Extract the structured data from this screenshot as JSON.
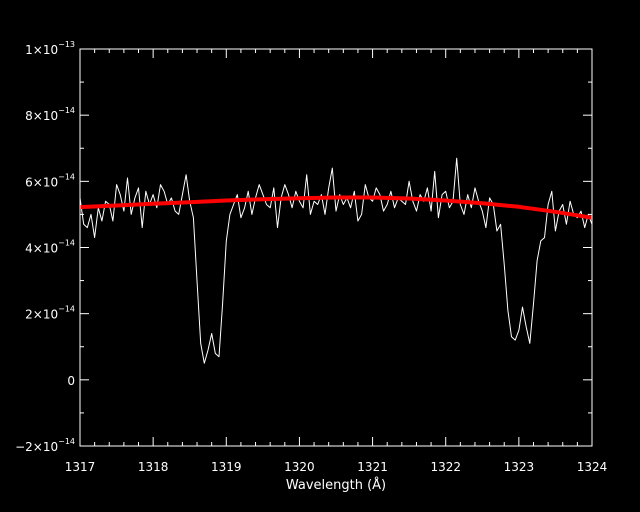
{
  "chart_data": {
    "type": "line",
    "title": "",
    "xlabel": "Wavelength (Å)",
    "ylabel": "",
    "xlim": [
      1317,
      1324
    ],
    "ylim": [
      -2e-14,
      1e-13
    ],
    "grid": false,
    "x_ticks": [
      {
        "value": 1317,
        "label": "1317"
      },
      {
        "value": 1318,
        "label": "1318"
      },
      {
        "value": 1319,
        "label": "1319"
      },
      {
        "value": 1320,
        "label": "1320"
      },
      {
        "value": 1321,
        "label": "1321"
      },
      {
        "value": 1322,
        "label": "1322"
      },
      {
        "value": 1323,
        "label": "1323"
      },
      {
        "value": 1324,
        "label": "1324"
      }
    ],
    "y_ticks": [
      {
        "value": -2e-14,
        "mantissa": "−2×10",
        "exponent": "−14"
      },
      {
        "value": 0,
        "mantissa": "0",
        "exponent": ""
      },
      {
        "value": 2e-14,
        "mantissa": "2×10",
        "exponent": "−14"
      },
      {
        "value": 4e-14,
        "mantissa": "4×10",
        "exponent": "−14"
      },
      {
        "value": 6e-14,
        "mantissa": "6×10",
        "exponent": "−14"
      },
      {
        "value": 8e-14,
        "mantissa": "8×10",
        "exponent": "−14"
      },
      {
        "value": 1e-13,
        "mantissa": "1×10",
        "exponent": "−13"
      }
    ],
    "series": [
      {
        "color": "#ffffff",
        "units": "1e-14",
        "x": [
          1317.0,
          1317.05,
          1317.1,
          1317.15,
          1317.2,
          1317.25,
          1317.3,
          1317.35,
          1317.4,
          1317.45,
          1317.5,
          1317.55,
          1317.6,
          1317.65,
          1317.7,
          1317.75,
          1317.8,
          1317.85,
          1317.9,
          1317.95,
          1318.0,
          1318.05,
          1318.1,
          1318.15,
          1318.2,
          1318.25,
          1318.3,
          1318.35,
          1318.4,
          1318.45,
          1318.5,
          1318.55,
          1318.6,
          1318.65,
          1318.7,
          1318.75,
          1318.8,
          1318.85,
          1318.9,
          1318.95,
          1319.0,
          1319.05,
          1319.1,
          1319.15,
          1319.2,
          1319.25,
          1319.3,
          1319.35,
          1319.4,
          1319.45,
          1319.5,
          1319.55,
          1319.6,
          1319.65,
          1319.7,
          1319.75,
          1319.8,
          1319.85,
          1319.9,
          1319.95,
          1320.0,
          1320.05,
          1320.1,
          1320.15,
          1320.2,
          1320.25,
          1320.3,
          1320.35,
          1320.4,
          1320.45,
          1320.5,
          1320.55,
          1320.6,
          1320.65,
          1320.7,
          1320.75,
          1320.8,
          1320.85,
          1320.9,
          1320.95,
          1321.0,
          1321.05,
          1321.1,
          1321.15,
          1321.2,
          1321.25,
          1321.3,
          1321.35,
          1321.4,
          1321.45,
          1321.5,
          1321.55,
          1321.6,
          1321.65,
          1321.7,
          1321.75,
          1321.8,
          1321.85,
          1321.9,
          1321.95,
          1322.0,
          1322.05,
          1322.1,
          1322.15,
          1322.2,
          1322.25,
          1322.3,
          1322.35,
          1322.4,
          1322.45,
          1322.5,
          1322.55,
          1322.6,
          1322.65,
          1322.7,
          1322.75,
          1322.8,
          1322.85,
          1322.9,
          1322.95,
          1323.0,
          1323.05,
          1323.1,
          1323.15,
          1323.2,
          1323.25,
          1323.3,
          1323.35,
          1323.4,
          1323.45,
          1323.5,
          1323.55,
          1323.6,
          1323.65,
          1323.7,
          1323.75,
          1323.8,
          1323.85,
          1323.9,
          1323.95,
          1324.0
        ],
        "y": [
          5.5,
          4.7,
          4.6,
          5.0,
          4.3,
          5.2,
          4.8,
          5.4,
          5.3,
          4.8,
          5.9,
          5.6,
          5.1,
          6.1,
          5.0,
          5.5,
          5.8,
          4.6,
          5.7,
          5.3,
          5.6,
          5.2,
          5.9,
          5.7,
          5.3,
          5.5,
          5.1,
          5.0,
          5.6,
          6.2,
          5.4,
          4.9,
          3.0,
          1.1,
          0.5,
          0.9,
          1.4,
          0.8,
          0.7,
          2.3,
          4.2,
          5.0,
          5.3,
          5.6,
          4.9,
          5.2,
          5.7,
          5.0,
          5.5,
          5.9,
          5.6,
          5.3,
          5.2,
          5.8,
          4.6,
          5.5,
          5.9,
          5.6,
          5.2,
          5.7,
          5.4,
          5.2,
          6.2,
          5.0,
          5.4,
          5.3,
          5.6,
          5.0,
          5.8,
          6.4,
          5.1,
          5.6,
          5.3,
          5.5,
          5.2,
          5.7,
          4.8,
          5.0,
          5.9,
          5.5,
          5.4,
          5.8,
          5.6,
          5.1,
          5.3,
          5.7,
          5.2,
          5.5,
          5.4,
          5.3,
          6.0,
          5.4,
          5.1,
          5.6,
          5.4,
          5.8,
          5.1,
          6.3,
          4.9,
          5.6,
          5.7,
          5.2,
          5.4,
          6.7,
          5.3,
          5.0,
          5.6,
          5.2,
          5.8,
          5.4,
          5.1,
          4.6,
          5.5,
          5.3,
          4.5,
          4.7,
          3.5,
          2.1,
          1.3,
          1.2,
          1.5,
          2.2,
          1.6,
          1.1,
          2.3,
          3.6,
          4.2,
          4.3,
          5.3,
          5.7,
          4.5,
          5.1,
          5.3,
          4.7,
          5.4,
          5.0,
          4.9,
          5.1,
          4.6,
          5.0,
          4.7
        ]
      },
      {
        "color": "#ff0000",
        "units": "1e-14",
        "x": [
          1317.0,
          1317.5,
          1318.0,
          1318.5,
          1319.0,
          1319.5,
          1320.0,
          1320.5,
          1321.0,
          1321.5,
          1322.0,
          1322.5,
          1323.0,
          1323.5,
          1324.0
        ],
        "y": [
          5.22,
          5.27,
          5.32,
          5.37,
          5.42,
          5.46,
          5.49,
          5.51,
          5.51,
          5.48,
          5.42,
          5.34,
          5.23,
          5.08,
          4.9
        ]
      }
    ]
  }
}
